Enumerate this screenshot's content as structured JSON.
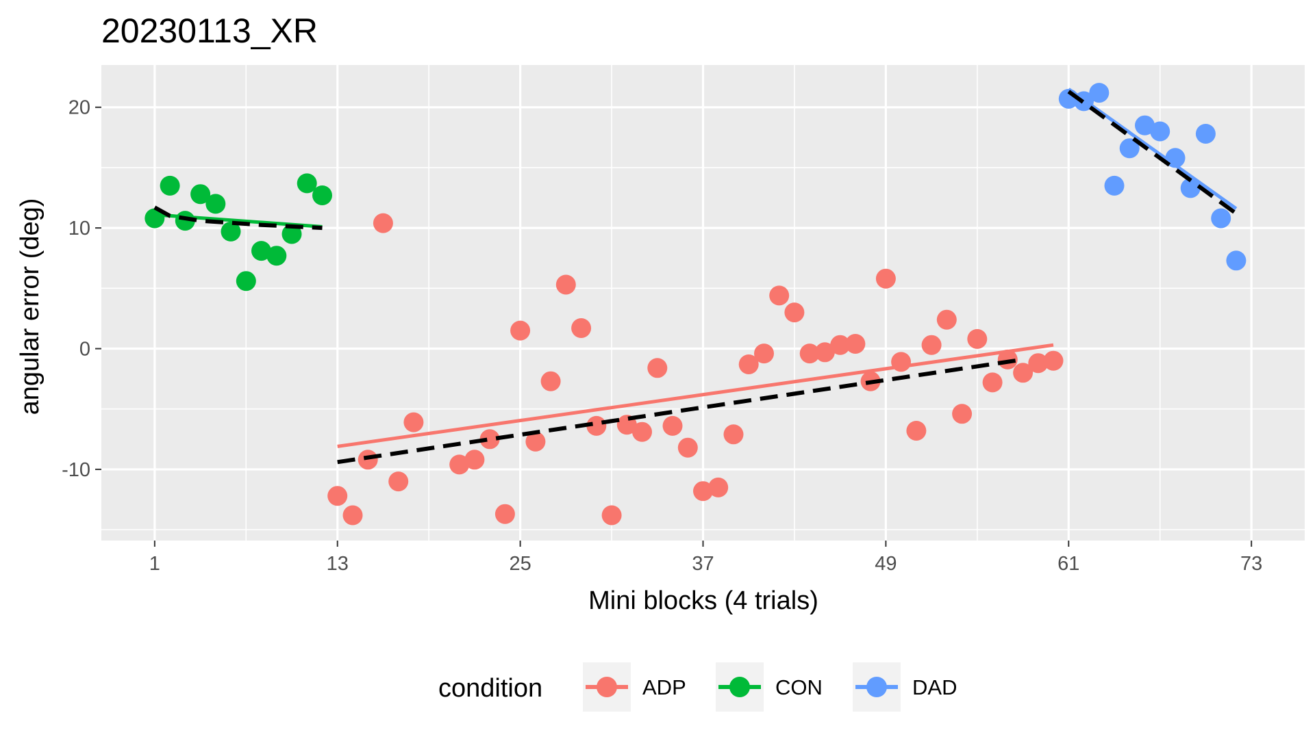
{
  "chart_data": {
    "type": "scatter",
    "title": "20230113_XR",
    "xlabel": "Mini blocks (4 trials)",
    "ylabel": "angular error (deg)",
    "xlim": [
      -2.5,
      76.5
    ],
    "ylim": [
      -15.9,
      23.5
    ],
    "xticks": [
      1,
      13,
      25,
      37,
      49,
      61,
      73
    ],
    "yticks": [
      -10,
      0,
      10,
      20
    ],
    "grid": true,
    "legend": {
      "title": "condition",
      "position": "bottom"
    },
    "series": [
      {
        "name": "ADP",
        "color": "#F8766D",
        "x": [
          13,
          14,
          15,
          16,
          17,
          18,
          21,
          22,
          23,
          24,
          25,
          26,
          27,
          28,
          29,
          30,
          31,
          32,
          33,
          34,
          35,
          36,
          37,
          38,
          39,
          40,
          41,
          42,
          43,
          44,
          45,
          46,
          47,
          48,
          49,
          50,
          51,
          52,
          53,
          54,
          55,
          56,
          57,
          58,
          59,
          60
        ],
        "y": [
          -12.2,
          -13.8,
          -9.2,
          10.4,
          -11.0,
          -6.1,
          -9.6,
          -9.2,
          -7.5,
          -13.7,
          1.5,
          -7.7,
          -2.7,
          5.3,
          1.7,
          -6.4,
          -13.8,
          -6.3,
          -6.9,
          -1.6,
          -6.4,
          -8.2,
          -11.8,
          -11.5,
          -7.1,
          -1.3,
          -0.4,
          4.4,
          3.0,
          -0.4,
          -0.3,
          0.3,
          0.4,
          -2.7,
          5.8,
          -1.1,
          -6.8,
          0.3,
          2.4,
          -5.4,
          0.8,
          -2.8,
          -0.9,
          -2.0,
          -1.2,
          -1.0
        ],
        "fit_solid": {
          "x": [
            13,
            60
          ],
          "y": [
            -8.1,
            0.3
          ]
        },
        "fit_dashed": {
          "x": [
            13,
            58
          ],
          "y": [
            -9.4,
            -0.9
          ]
        }
      },
      {
        "name": "CON",
        "color": "#00BA38",
        "x": [
          1,
          2,
          3,
          4,
          5,
          6,
          7,
          8,
          9,
          10,
          11,
          12
        ],
        "y": [
          10.8,
          13.5,
          10.6,
          12.8,
          12.0,
          9.7,
          5.6,
          8.1,
          7.7,
          9.5,
          13.7,
          12.7
        ],
        "fit_solid": {
          "x": [
            1,
            12
          ],
          "y": [
            11.1,
            10.1
          ]
        },
        "fit_dashed": {
          "x": [
            1,
            2,
            4,
            8,
            12
          ],
          "y": [
            11.7,
            11.0,
            10.6,
            10.25,
            10.0
          ]
        }
      },
      {
        "name": "DAD",
        "color": "#619CFF",
        "x": [
          61,
          62,
          63,
          64,
          65,
          66,
          67,
          68,
          69,
          70,
          71,
          72
        ],
        "y": [
          20.7,
          20.5,
          21.2,
          13.5,
          16.6,
          18.5,
          18.0,
          15.8,
          13.3,
          17.8,
          10.8,
          7.3
        ],
        "fit_solid": {
          "x": [
            61,
            72
          ],
          "y": [
            21.5,
            11.6
          ]
        },
        "fit_dashed": {
          "x": [
            61,
            72
          ],
          "y": [
            21.3,
            11.2
          ]
        }
      }
    ]
  }
}
